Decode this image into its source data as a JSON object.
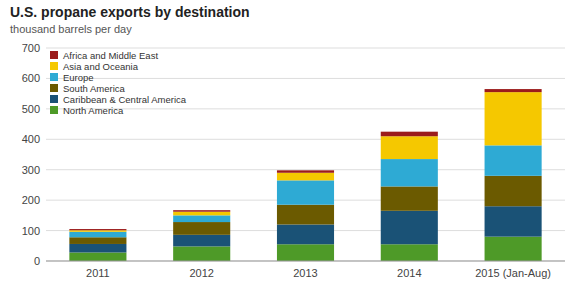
{
  "chart_data": {
    "type": "bar",
    "stacked": true,
    "title": "U.S. propane exports by destination",
    "subtitle": "thousand barrels per day",
    "categories": [
      "2011",
      "2012",
      "2013",
      "2014",
      "2015 (Jan-Aug)"
    ],
    "series": [
      {
        "name": "North America",
        "color": "#4e9a28",
        "values": [
          28,
          48,
          55,
          55,
          80
        ]
      },
      {
        "name": "Caribbean & Central America",
        "color": "#1a5276",
        "values": [
          28,
          38,
          65,
          110,
          100
        ]
      },
      {
        "name": "South America",
        "color": "#6b5a00",
        "values": [
          22,
          42,
          65,
          80,
          100
        ]
      },
      {
        "name": "Europe",
        "color": "#2eaad4",
        "values": [
          18,
          22,
          80,
          90,
          100
        ]
      },
      {
        "name": "Asia and Oceania",
        "color": "#f5c800",
        "values": [
          5,
          12,
          25,
          75,
          175
        ]
      },
      {
        "name": "Africa and Middle East",
        "color": "#9b1b1b",
        "values": [
          4,
          5,
          8,
          15,
          10
        ]
      }
    ],
    "ylim": [
      0,
      700
    ],
    "yticks": [
      0,
      100,
      200,
      300,
      400,
      500,
      600,
      700
    ],
    "grid": true,
    "legend": "upper left"
  }
}
